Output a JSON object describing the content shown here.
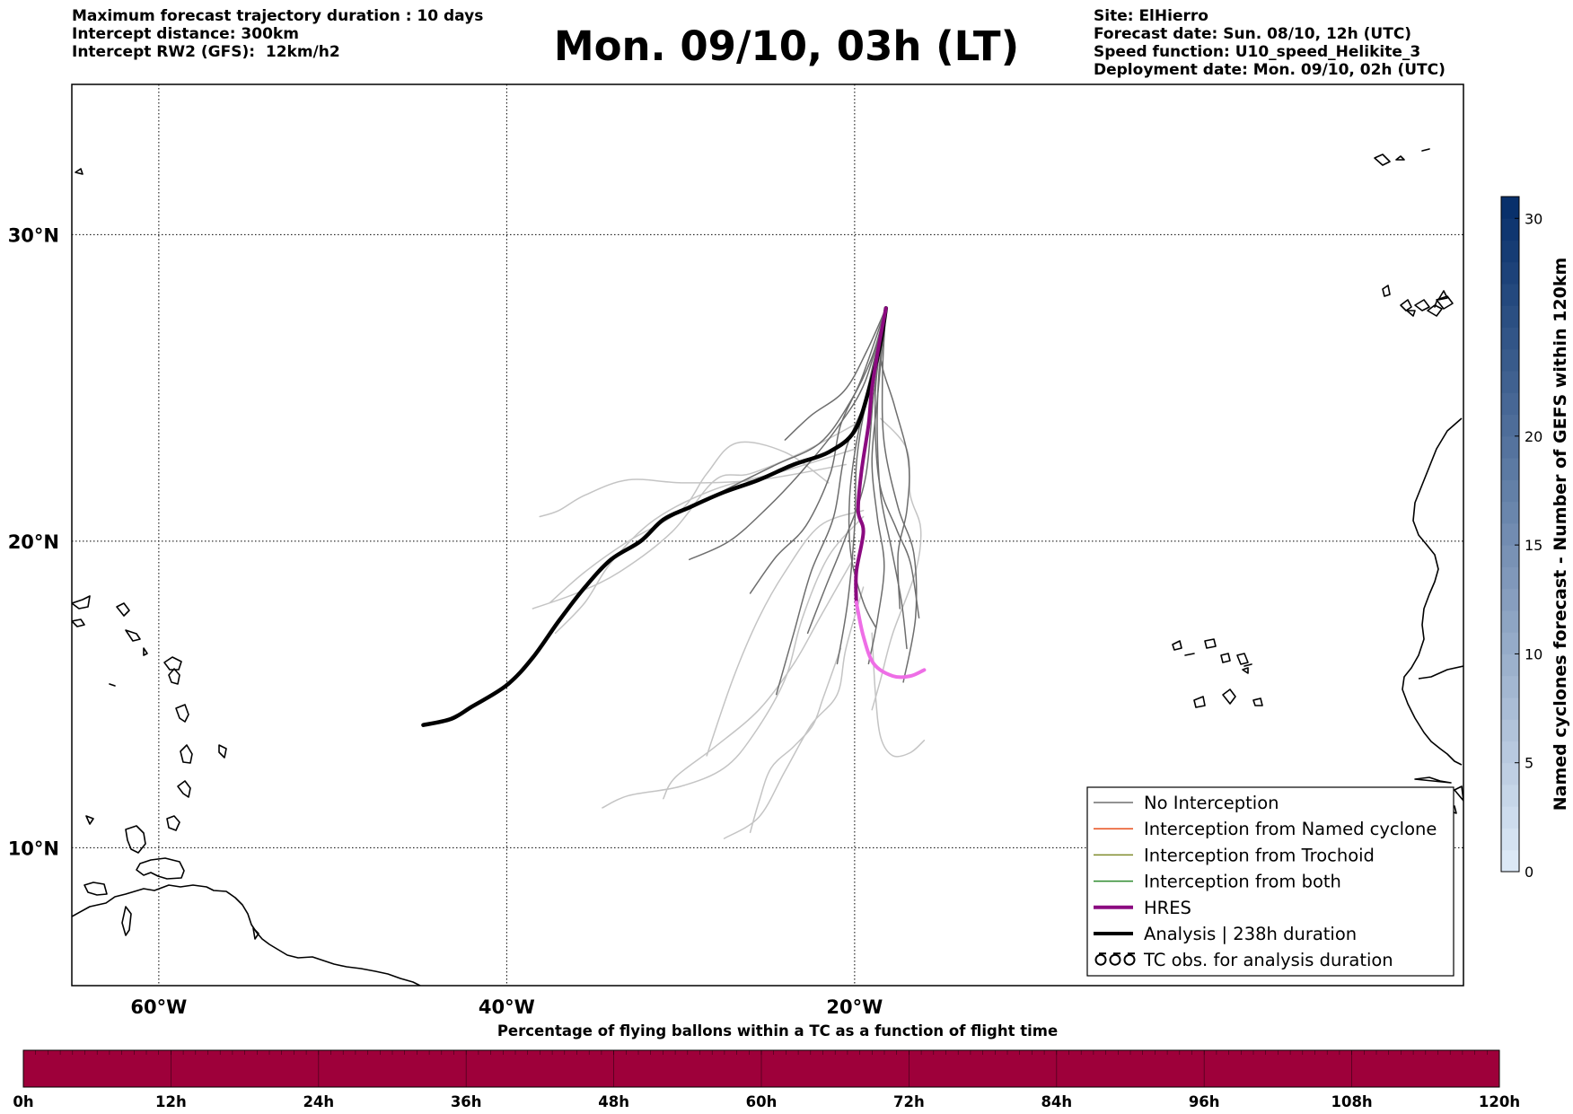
{
  "header": {
    "left_lines": [
      "Maximum forecast trajectory duration : 10 days",
      "Intercept distance: 300km",
      "Intercept RW2 (GFS):  12km/h2"
    ],
    "title": "Mon. 09/10, 03h (LT)",
    "right_lines": [
      "Site: ElHierro",
      "Forecast date: Sun. 08/10, 12h (UTC)",
      "Speed function: U10_speed_Helikite_3",
      "Deployment date: Mon. 09/10, 02h (UTC)"
    ]
  },
  "map": {
    "lon_range": [
      -65,
      15
    ],
    "lat_range": [
      5.5,
      34.9
    ],
    "lat_ticks": [
      {
        "value": 30,
        "label": "30°N"
      },
      {
        "value": 20,
        "label": "20°N"
      },
      {
        "value": 10,
        "label": "10°N"
      }
    ],
    "lon_ticks": [
      {
        "value": -60,
        "label": "60°W"
      },
      {
        "value": -40,
        "label": "40°W"
      },
      {
        "value": -20,
        "label": "20°W"
      }
    ],
    "colors": {
      "no_interception": "#6e6e6e",
      "named_cyclone": "#e8501e",
      "trochoid": "#7f8c2b",
      "both": "#2e8b2e",
      "hres": "#8b0a80",
      "hres_late": "#ee6ee6",
      "analysis": "#000000",
      "faint_ensemble": "#c4c4c4"
    },
    "origin": {
      "lon": -18.2,
      "lat": 27.6
    },
    "analysis_track": [
      [
        -18.2,
        27.6
      ],
      [
        -18.5,
        26.5
      ],
      [
        -19.1,
        25.1
      ],
      [
        -20.0,
        23.6
      ],
      [
        -21.5,
        22.9
      ],
      [
        -23.5,
        22.5
      ],
      [
        -25.5,
        22.0
      ],
      [
        -27.5,
        21.6
      ],
      [
        -29.5,
        21.1
      ],
      [
        -31.0,
        20.7
      ],
      [
        -32.3,
        20.0
      ],
      [
        -34.0,
        19.4
      ],
      [
        -35.5,
        18.5
      ],
      [
        -37.0,
        17.4
      ],
      [
        -38.5,
        16.2
      ],
      [
        -40.0,
        15.3
      ],
      [
        -42.0,
        14.6
      ],
      [
        -43.2,
        14.2
      ],
      [
        -44.8,
        14.0
      ]
    ],
    "hres_track": [
      [
        -18.2,
        27.6
      ],
      [
        -18.6,
        26.4
      ],
      [
        -19.0,
        25.0
      ],
      [
        -19.2,
        23.8
      ],
      [
        -19.6,
        22.3
      ],
      [
        -19.8,
        21.0
      ],
      [
        -19.5,
        20.3
      ],
      [
        -19.9,
        19.0
      ],
      [
        -19.9,
        18.0
      ],
      [
        -19.5,
        16.9
      ],
      [
        -18.9,
        16.0
      ],
      [
        -17.8,
        15.6
      ],
      [
        -16.8,
        15.6
      ],
      [
        -16.0,
        15.8
      ]
    ],
    "hres_late_start_index": 8,
    "gefs_members": [
      [
        [
          -18.2,
          27.6
        ],
        [
          -19.0,
          26.0
        ],
        [
          -20.3,
          24.5
        ],
        [
          -22.0,
          23.2
        ],
        [
          -24.5,
          22.5
        ],
        [
          -27.0,
          21.8
        ],
        [
          -29.0,
          21.2
        ]
      ],
      [
        [
          -18.2,
          27.6
        ],
        [
          -18.8,
          25.8
        ],
        [
          -19.5,
          24.1
        ],
        [
          -19.9,
          22.5
        ],
        [
          -20.0,
          20.5
        ],
        [
          -20.4,
          18.0
        ],
        [
          -21.0,
          16.0
        ]
      ],
      [
        [
          -18.2,
          27.6
        ],
        [
          -18.6,
          25.5
        ],
        [
          -18.7,
          23.5
        ],
        [
          -18.5,
          21.5
        ],
        [
          -17.9,
          19.8
        ],
        [
          -17.3,
          18.0
        ],
        [
          -17.0,
          16.5
        ]
      ],
      [
        [
          -18.2,
          27.6
        ],
        [
          -19.4,
          25.2
        ],
        [
          -21.0,
          23.7
        ],
        [
          -23.0,
          22.3
        ],
        [
          -25.0,
          21.1
        ],
        [
          -27.2,
          20.0
        ],
        [
          -29.5,
          19.4
        ]
      ],
      [
        [
          -18.2,
          27.6
        ],
        [
          -19.1,
          25.0
        ],
        [
          -20.5,
          23.0
        ],
        [
          -21.2,
          20.8
        ],
        [
          -22.5,
          19.0
        ],
        [
          -23.5,
          17.0
        ],
        [
          -24.5,
          15.0
        ]
      ],
      [
        [
          -18.2,
          27.6
        ],
        [
          -18.4,
          25.4
        ],
        [
          -18.3,
          23.2
        ],
        [
          -17.5,
          21.1
        ],
        [
          -16.6,
          19.6
        ],
        [
          -16.5,
          17.5
        ],
        [
          -17.2,
          15.4
        ]
      ],
      [
        [
          -18.2,
          27.6
        ],
        [
          -18.9,
          24.8
        ],
        [
          -19.4,
          22.0
        ],
        [
          -20.6,
          20.0
        ],
        [
          -21.6,
          18.6
        ],
        [
          -22.7,
          17.0
        ]
      ],
      [
        [
          -18.2,
          27.6
        ],
        [
          -19.3,
          26.2
        ],
        [
          -20.6,
          24.9
        ],
        [
          -22.5,
          24.1
        ],
        [
          -24.0,
          23.3
        ]
      ],
      [
        [
          -18.2,
          27.6
        ],
        [
          -18.8,
          24.9
        ],
        [
          -18.6,
          22.0
        ],
        [
          -17.6,
          20.4
        ],
        [
          -16.8,
          19.3
        ],
        [
          -16.3,
          17.5
        ]
      ],
      [
        [
          -18.2,
          27.6
        ],
        [
          -19.6,
          25.3
        ],
        [
          -20.8,
          23.8
        ],
        [
          -21.4,
          22.2
        ],
        [
          -22.8,
          20.5
        ],
        [
          -24.5,
          19.5
        ],
        [
          -26.0,
          18.3
        ]
      ],
      [
        [
          -18.2,
          27.6
        ],
        [
          -18.7,
          24.6
        ],
        [
          -19.0,
          22.6
        ],
        [
          -18.7,
          20.8
        ],
        [
          -18.3,
          19.2
        ],
        [
          -18.7,
          17.4
        ],
        [
          -19.2,
          16.0
        ]
      ],
      [
        [
          -18.2,
          27.6
        ],
        [
          -19.0,
          25.6
        ],
        [
          -19.9,
          23.2
        ],
        [
          -20.3,
          21.3
        ],
        [
          -20.2,
          19.5
        ],
        [
          -19.5,
          18.0
        ],
        [
          -18.8,
          17.2
        ]
      ],
      [
        [
          -18.2,
          27.6
        ],
        [
          -18.5,
          26.0
        ],
        [
          -17.7,
          24.4
        ],
        [
          -16.9,
          22.6
        ],
        [
          -17.0,
          21.0
        ],
        [
          -17.5,
          19.6
        ],
        [
          -17.4,
          17.8
        ]
      ]
    ],
    "faint_members": [
      [
        [
          -20.0,
          23.8
        ],
        [
          -23.0,
          22.9
        ],
        [
          -26.0,
          22.2
        ],
        [
          -28.0,
          22.0
        ],
        [
          -30.5,
          20.3
        ],
        [
          -33.5,
          19.0
        ],
        [
          -36.0,
          18.3
        ],
        [
          -38.5,
          17.8
        ]
      ],
      [
        [
          -20.0,
          23.0
        ],
        [
          -24.0,
          22.3
        ],
        [
          -28.0,
          21.7
        ],
        [
          -31.5,
          20.7
        ],
        [
          -34.0,
          19.3
        ],
        [
          -35.5,
          18.0
        ],
        [
          -37.2,
          17.0
        ]
      ],
      [
        [
          -20.5,
          22.5
        ],
        [
          -25.5,
          22.0
        ],
        [
          -29.8,
          21.9
        ],
        [
          -33.0,
          22.0
        ],
        [
          -35.5,
          21.5
        ],
        [
          -37.0,
          21.0
        ],
        [
          -38.1,
          20.8
        ]
      ],
      [
        [
          -19.5,
          21.0
        ],
        [
          -22.0,
          20.5
        ],
        [
          -24.0,
          19.0
        ],
        [
          -25.5,
          17.5
        ],
        [
          -27.0,
          15.5
        ],
        [
          -28.5,
          13.0
        ]
      ],
      [
        [
          -19.5,
          20.8
        ],
        [
          -21.5,
          19.5
        ],
        [
          -23.0,
          17.5
        ],
        [
          -24.0,
          15.5
        ],
        [
          -25.8,
          13.7
        ],
        [
          -27.5,
          12.6
        ],
        [
          -30.0,
          12.0
        ],
        [
          -33.0,
          11.7
        ],
        [
          -34.5,
          11.3
        ]
      ],
      [
        [
          -20.0,
          19.5
        ],
        [
          -22.0,
          17.5
        ],
        [
          -23.5,
          16.0
        ],
        [
          -25.5,
          14.5
        ],
        [
          -28.0,
          13.3
        ],
        [
          -30.3,
          12.3
        ],
        [
          -31.0,
          11.6
        ]
      ],
      [
        [
          -19.5,
          18.5
        ],
        [
          -20.5,
          16.5
        ],
        [
          -21.0,
          15.0
        ],
        [
          -22.5,
          14.0
        ],
        [
          -24.0,
          12.5
        ],
        [
          -25.5,
          11.0
        ],
        [
          -27.5,
          10.3
        ]
      ],
      [
        [
          -19.0,
          17.0
        ],
        [
          -18.8,
          15.0
        ],
        [
          -18.5,
          13.6
        ],
        [
          -17.8,
          13.0
        ],
        [
          -16.8,
          13.1
        ],
        [
          -16.0,
          13.5
        ]
      ],
      [
        [
          -20.8,
          16.5
        ],
        [
          -21.8,
          14.9
        ],
        [
          -22.4,
          14.0
        ],
        [
          -23.5,
          13.3
        ],
        [
          -24.8,
          12.6
        ],
        [
          -25.5,
          11.5
        ],
        [
          -26.0,
          10.5
        ]
      ],
      [
        [
          -21.5,
          21.9
        ],
        [
          -24.0,
          22.9
        ],
        [
          -26.8,
          23.2
        ],
        [
          -28.5,
          22.2
        ],
        [
          -30.0,
          21.0
        ],
        [
          -33.0,
          20.0
        ],
        [
          -35.5,
          19.0
        ],
        [
          -37.5,
          18.0
        ]
      ],
      [
        [
          -18.5,
          24.0
        ],
        [
          -17.0,
          23.0
        ],
        [
          -16.8,
          21.5
        ],
        [
          -16.2,
          20.4
        ],
        [
          -16.5,
          19.0
        ],
        [
          -17.8,
          17.0
        ],
        [
          -18.5,
          15.5
        ],
        [
          -19.0,
          14.5
        ]
      ]
    ]
  },
  "legend": {
    "items": [
      {
        "label": "No Interception",
        "kind": "thin",
        "color_key": "no_interception"
      },
      {
        "label": "Interception from Named cyclone",
        "kind": "thin",
        "color_key": "named_cyclone"
      },
      {
        "label": "Interception from Trochoid",
        "kind": "thin",
        "color_key": "trochoid"
      },
      {
        "label": "Interception from both",
        "kind": "thin",
        "color_key": "both"
      },
      {
        "label": "HRES",
        "kind": "thick",
        "color_key": "hres"
      },
      {
        "label": "Analysis | 238h duration",
        "kind": "thick",
        "color_key": "analysis"
      },
      {
        "label": "TC obs. for analysis duration",
        "kind": "symbol",
        "color_key": "analysis"
      }
    ]
  },
  "colorbar": {
    "label": "Named cyclones forecast - Number of GEFS within 120km",
    "range": [
      0,
      31
    ],
    "ticks": [
      0,
      5,
      10,
      15,
      20,
      30
    ],
    "bounds": [
      0,
      1,
      2,
      3,
      4,
      5,
      6,
      7,
      8,
      9,
      10,
      11,
      12,
      13,
      14,
      15,
      16,
      17,
      18,
      19,
      20,
      21,
      22,
      23,
      24,
      25,
      26,
      27,
      28,
      29,
      30,
      31
    ],
    "color_low": "#dbe8f6",
    "color_high": "#08306b"
  },
  "percentage_bar": {
    "title": "Percentage of flying ballons within a TC as a function of flight time",
    "ticks": [
      "0h",
      "12h",
      "24h",
      "36h",
      "48h",
      "60h",
      "72h",
      "84h",
      "96h",
      "108h",
      "120h"
    ],
    "minor_divisions": 120,
    "fill_color": "#9e003a"
  }
}
